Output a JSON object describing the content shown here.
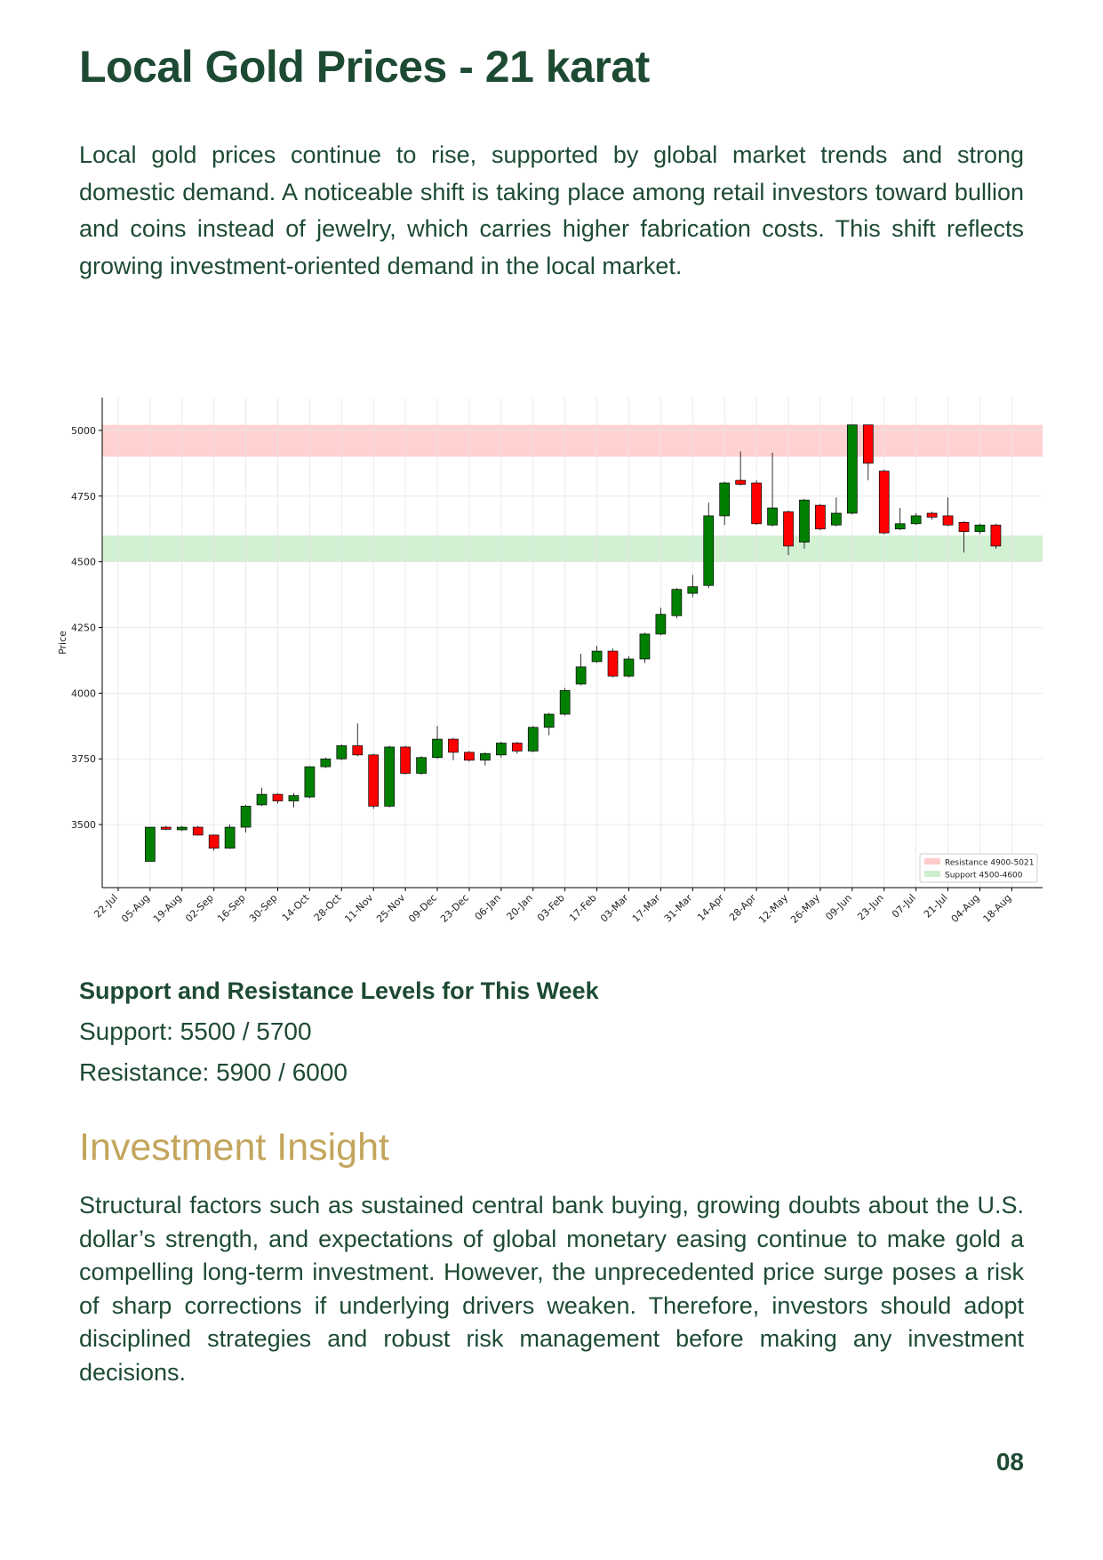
{
  "header": {
    "title": "Local Gold Prices - 21 karat"
  },
  "intro": "Local gold prices continue to rise, supported by global market trends and strong domestic demand. A noticeable shift is taking place among retail investors toward bullion and coins instead of jewelry, which carries higher fabrication costs. This shift reflects growing investment-oriented demand in the local market.",
  "chart_data": {
    "type": "candlestick",
    "y_label": "Price",
    "up_color": "#008000",
    "down_color": "#ff0000",
    "grid": true,
    "legend": "lower right",
    "ylim": [
      3260,
      5125
    ],
    "yticks": [
      3500,
      3750,
      4000,
      4250,
      4500,
      4750,
      5000
    ],
    "xticks": [
      "22-Jul",
      "05-Aug",
      "19-Aug",
      "02-Sep",
      "16-Sep",
      "30-Sep",
      "14-Oct",
      "28-Oct",
      "11-Nov",
      "25-Nov",
      "09-Dec",
      "23-Dec",
      "06-Jan",
      "20-Jan",
      "03-Feb",
      "17-Feb",
      "03-Mar",
      "17-Mar",
      "31-Mar",
      "14-Apr",
      "28-Apr",
      "12-May",
      "26-May",
      "09-Jun",
      "23-Jun",
      "07-Jul",
      "21-Jul",
      "04-Aug",
      "18-Aug"
    ],
    "bands": [
      {
        "name": "Resistance 4900-5021",
        "from": 4900,
        "to": 5021,
        "color": "#ffcccc"
      },
      {
        "name": "Support 4500-4600",
        "from": 4500,
        "to": 4600,
        "color": "#cdeecd"
      }
    ],
    "x": [
      "05-Aug",
      "12-Aug",
      "19-Aug",
      "26-Aug",
      "02-Sep",
      "09-Sep",
      "16-Sep",
      "23-Sep",
      "30-Sep",
      "07-Oct",
      "14-Oct",
      "21-Oct",
      "28-Oct",
      "04-Nov",
      "11-Nov",
      "18-Nov",
      "25-Nov",
      "02-Dec",
      "09-Dec",
      "16-Dec",
      "23-Dec",
      "30-Dec",
      "06-Jan",
      "13-Jan",
      "20-Jan",
      "27-Jan",
      "03-Feb",
      "10-Feb",
      "17-Feb",
      "24-Feb",
      "03-Mar",
      "10-Mar",
      "17-Mar",
      "24-Mar",
      "31-Mar",
      "07-Apr",
      "14-Apr",
      "21-Apr",
      "28-Apr",
      "05-May",
      "12-May",
      "19-May",
      "26-May",
      "02-Jun",
      "09-Jun",
      "16-Jun",
      "23-Jun",
      "30-Jun",
      "07-Jul",
      "14-Jul",
      "21-Jul",
      "28-Jul",
      "04-Aug",
      "11-Aug"
    ],
    "open": [
      3360,
      3490,
      3480,
      3490,
      3460,
      3410,
      3490,
      3575,
      3615,
      3590,
      3605,
      3720,
      3750,
      3800,
      3765,
      3570,
      3795,
      3695,
      3755,
      3825,
      3775,
      3745,
      3765,
      3810,
      3780,
      3870,
      3920,
      4035,
      4120,
      4160,
      4065,
      4130,
      4225,
      4295,
      4380,
      4410,
      4675,
      4810,
      4800,
      4640,
      4690,
      4575,
      4715,
      4640,
      4685,
      5021,
      4845,
      4625,
      4645,
      4685,
      4675,
      4650,
      4615,
      4640
    ],
    "high": [
      3490,
      3495,
      3495,
      3495,
      3462,
      3500,
      3575,
      3640,
      3620,
      3620,
      3722,
      3755,
      3805,
      3885,
      3770,
      3800,
      3800,
      3760,
      3875,
      3830,
      3780,
      3775,
      3815,
      3815,
      3875,
      3925,
      4020,
      4150,
      4180,
      4170,
      4140,
      4230,
      4325,
      4400,
      4450,
      4725,
      4805,
      4920,
      4810,
      4915,
      4695,
      4740,
      4720,
      4745,
      5021,
      5021,
      4850,
      4705,
      4685,
      4690,
      4745,
      4655,
      4645,
      4645
    ],
    "low": [
      3360,
      3478,
      3475,
      3458,
      3400,
      3408,
      3470,
      3570,
      3580,
      3565,
      3600,
      3715,
      3745,
      3760,
      3560,
      3565,
      3690,
      3690,
      3750,
      3745,
      3740,
      3725,
      3755,
      3770,
      3775,
      3840,
      3915,
      4030,
      4115,
      4060,
      4060,
      4115,
      4220,
      4285,
      4365,
      4400,
      4640,
      4790,
      4640,
      4635,
      4525,
      4550,
      4620,
      4635,
      4680,
      4810,
      4605,
      4620,
      4640,
      4660,
      4635,
      4535,
      4605,
      4550
    ],
    "close": [
      3490,
      3482,
      3490,
      3460,
      3410,
      3490,
      3570,
      3615,
      3590,
      3610,
      3720,
      3750,
      3800,
      3765,
      3570,
      3795,
      3695,
      3755,
      3825,
      3775,
      3745,
      3770,
      3810,
      3780,
      3870,
      3920,
      4010,
      4100,
      4160,
      4065,
      4130,
      4225,
      4300,
      4395,
      4405,
      4675,
      4800,
      4795,
      4645,
      4705,
      4560,
      4735,
      4625,
      4685,
      5021,
      4875,
      4610,
      4645,
      4675,
      4670,
      4640,
      4615,
      4640,
      4560
    ]
  },
  "levels": {
    "heading": "Support and Resistance Levels for This Week",
    "support": "Support: 5500 / 5700",
    "resistance": "Resistance: 5900 / 6000"
  },
  "insight": {
    "heading": "Investment Insight",
    "body": "Structural factors such as sustained central bank buying, growing doubts about the U.S. dollar’s strength, and expectations of global monetary easing continue to make gold a compelling long-term investment. However, the unprecedented price surge poses a risk of sharp corrections if underlying drivers weaken. Therefore, investors should adopt disciplined strategies and robust risk management before making any investment decisions."
  },
  "page_number": "08"
}
